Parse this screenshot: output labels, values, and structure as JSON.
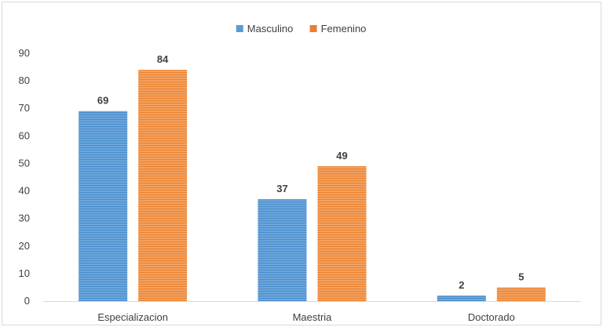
{
  "chart_data": {
    "type": "bar",
    "title": "",
    "xlabel": "",
    "ylabel": "",
    "categories": [
      "Especializacion",
      "Maestria",
      "Doctorado"
    ],
    "series": [
      {
        "name": "Masculino",
        "values": [
          69,
          37,
          2
        ],
        "color": "#5b9bd5"
      },
      {
        "name": "Femenino",
        "values": [
          84,
          49,
          5
        ],
        "color": "#ed7d31"
      }
    ],
    "ylim": [
      0,
      90
    ],
    "yticks": [
      0,
      10,
      20,
      30,
      40,
      50,
      60,
      70,
      80,
      90
    ],
    "grid": false,
    "legend_position": "top-center",
    "data_labels": true
  }
}
